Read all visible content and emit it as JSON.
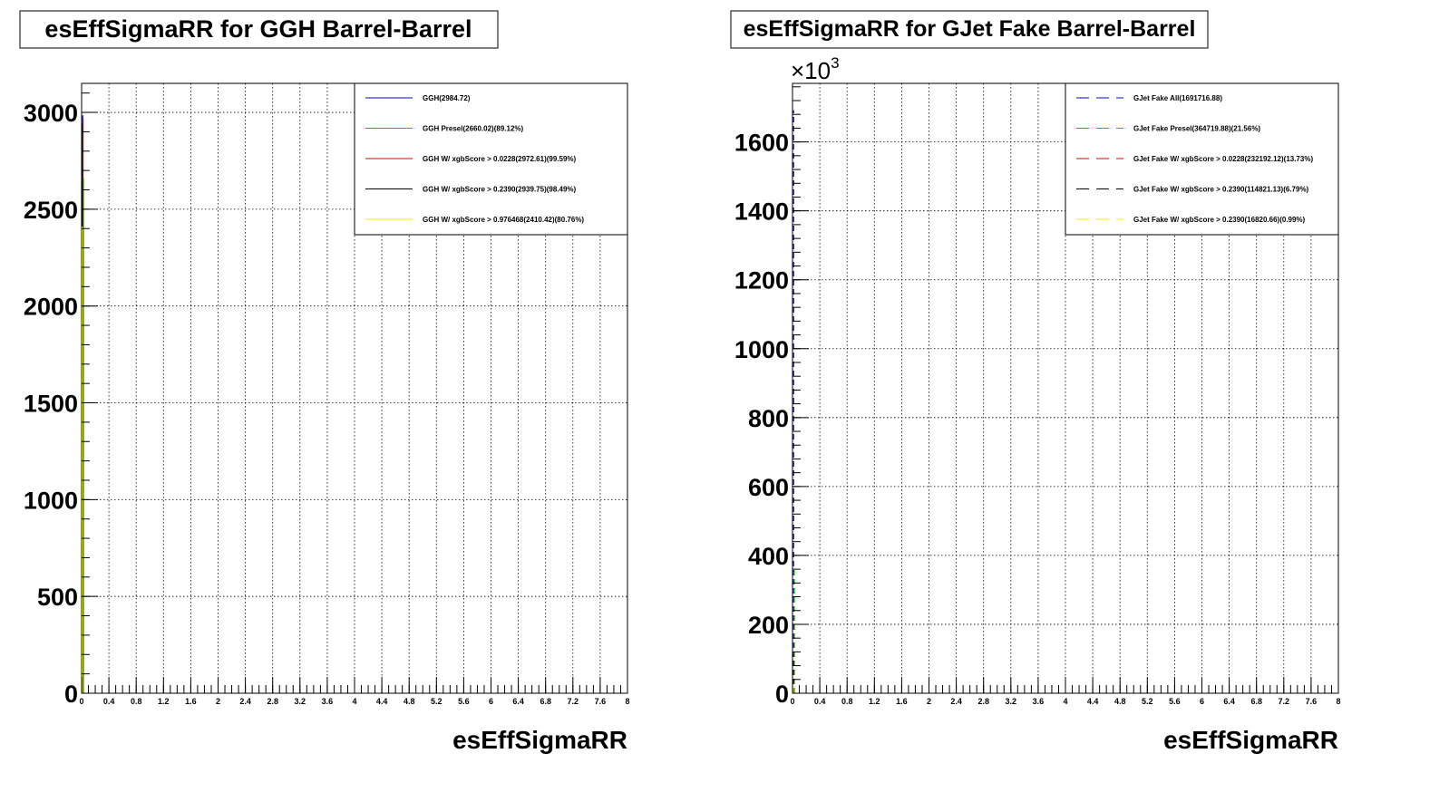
{
  "chart_data": [
    {
      "type": "histogram",
      "title": "esEffSigmaRR for GGH Barrel-Barrel",
      "xlabel": "esEffSigmaRR",
      "ylabel": "",
      "xlim": [
        0,
        8
      ],
      "ylim": [
        0,
        3150
      ],
      "y_multiplier": "",
      "yticks": [
        0,
        500,
        1000,
        1500,
        2000,
        2500,
        3000
      ],
      "ytick_labels": [
        "0",
        "500",
        "1000",
        "1500",
        "2000",
        "2500",
        "3000"
      ],
      "xticks": [
        0,
        0.4,
        0.8,
        1.2,
        1.6,
        2,
        2.4,
        2.8,
        3.2,
        3.6,
        4,
        4.4,
        4.8,
        5.2,
        5.6,
        6,
        6.4,
        6.8,
        7.2,
        7.6,
        8
      ],
      "xtick_labels": [
        "0",
        "0.4",
        "0.8",
        "1.2",
        "1.6",
        "2",
        "2.4",
        "2.8",
        "3.2",
        "3.6",
        "4",
        "4.4",
        "4.8",
        "5.2",
        "5.6",
        "6",
        "6.4",
        "6.8",
        "7.2",
        "7.6",
        "8"
      ],
      "grid": true,
      "legend_position": "top-right",
      "series": [
        {
          "name": "GGH(2984.72)",
          "color": "#0000cc",
          "line_style": "solid",
          "values": [
            2984.72
          ]
        },
        {
          "name": "GGH Presel(2660.02)(89.12%)",
          "color": "#00cc00",
          "line_style": "solid",
          "values": [
            2660.02
          ]
        },
        {
          "name": "GGH W/ xgbScore > 0.0228(2972.61)(99.59%)",
          "color": "#dd0000",
          "line_style": "solid",
          "values": [
            2972.61
          ]
        },
        {
          "name": "GGH W/ xgbScore > 0.2390(2939.75)(98.49%)",
          "color": "#000000",
          "line_style": "solid",
          "values": [
            2939.75
          ]
        },
        {
          "name": "GGH W/ xgbScore > 0.976468(2410.42)(80.76%)",
          "color": "#eeee00",
          "line_style": "solid",
          "values": [
            2410.42
          ]
        }
      ]
    },
    {
      "type": "histogram",
      "title": "esEffSigmaRR for GJet Fake Barrel-Barrel",
      "xlabel": "esEffSigmaRR",
      "ylabel": "",
      "xlim": [
        0,
        8
      ],
      "ylim": [
        0,
        1770
      ],
      "y_multiplier_base": "×10",
      "y_multiplier_exp": "3",
      "yticks": [
        0,
        200,
        400,
        600,
        800,
        1000,
        1200,
        1400,
        1600
      ],
      "ytick_labels": [
        "0",
        "200",
        "400",
        "600",
        "800",
        "1000",
        "1200",
        "1400",
        "1600"
      ],
      "xticks": [
        0,
        0.4,
        0.8,
        1.2,
        1.6,
        2,
        2.4,
        2.8,
        3.2,
        3.6,
        4,
        4.4,
        4.8,
        5.2,
        5.6,
        6,
        6.4,
        6.8,
        7.2,
        7.6,
        8
      ],
      "xtick_labels": [
        "0",
        "0.4",
        "0.8",
        "1.2",
        "1.6",
        "2",
        "2.4",
        "2.8",
        "3.2",
        "3.6",
        "4",
        "4.4",
        "4.8",
        "5.2",
        "5.6",
        "6",
        "6.4",
        "6.8",
        "7.2",
        "7.6",
        "8"
      ],
      "grid": true,
      "legend_position": "top-right",
      "series": [
        {
          "name": "GJet Fake All(1691716.88)",
          "color": "#0000cc",
          "line_style": "dashed",
          "values": [
            1691.72
          ]
        },
        {
          "name": "GJet Fake Presel(364719.88)(21.56%)",
          "color": "#00cc00",
          "line_style": "dashed",
          "values": [
            364.72
          ]
        },
        {
          "name": "GJet Fake W/ xgbScore > 0.0228(232192.12)(13.73%)",
          "color": "#dd0000",
          "line_style": "dashed",
          "values": [
            232.19
          ]
        },
        {
          "name": "GJet Fake W/ xgbScore > 0.2390(114821.13)(6.79%)",
          "color": "#000000",
          "line_style": "dashed",
          "values": [
            114.82
          ]
        },
        {
          "name": "GJet Fake W/ xgbScore > 0.2390(16820.66)(0.99%)",
          "color": "#eeee00",
          "line_style": "dashed",
          "values": [
            16.82
          ]
        }
      ]
    }
  ]
}
